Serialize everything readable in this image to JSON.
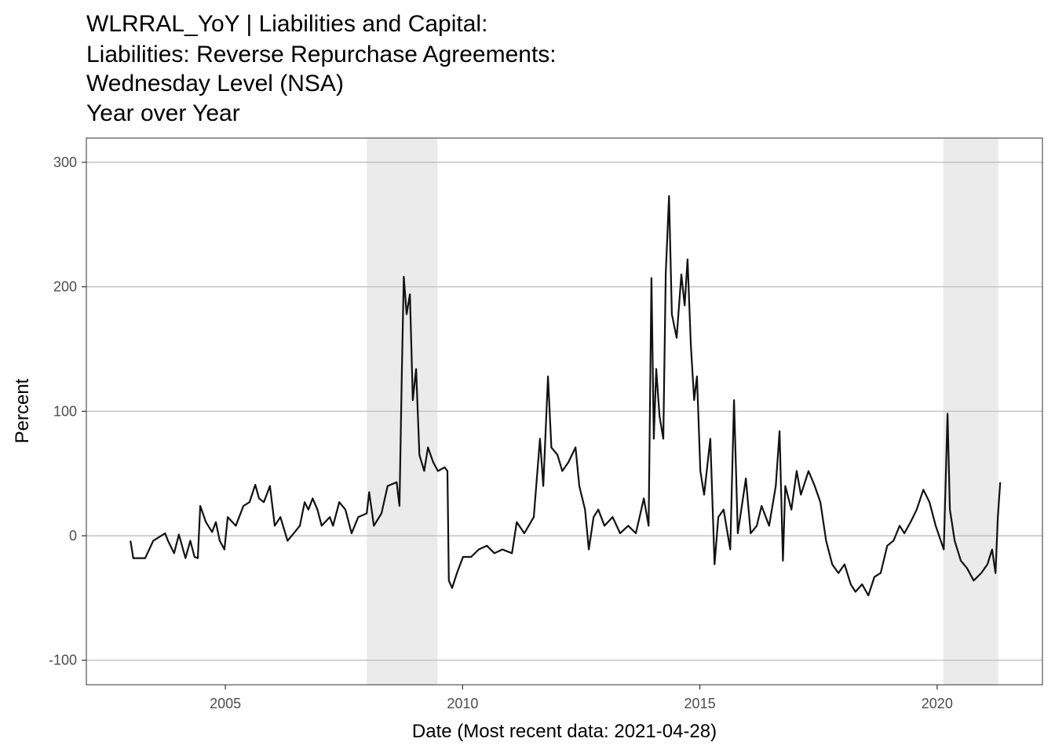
{
  "chart_data": {
    "type": "line",
    "title_lines": [
      "WLRRAL_YoY | Liabilities and Capital:",
      "Liabilities: Reverse Repurchase Agreements:",
      "Wednesday Level (NSA)",
      "Year over Year"
    ],
    "x_label": "Date (Most recent data: 2021-04-28)",
    "y_label": "Percent",
    "color": "#111111",
    "grid": true,
    "shade_color": "#ebebeb",
    "shaded_regions": [
      [
        2007.98,
        2009.47
      ],
      [
        2020.13,
        2021.29
      ]
    ],
    "xlim": [
      2002.07,
      2022.22
    ],
    "ylim": [
      -119.7,
      319.5
    ],
    "xticks": [
      2005,
      2010,
      2015,
      2020
    ],
    "yticks": [
      -100,
      0,
      100,
      200,
      300
    ],
    "x": [
      2003.0,
      2003.06,
      2003.31,
      2003.48,
      2003.73,
      2003.79,
      2003.92,
      2004.02,
      2004.16,
      2004.26,
      2004.35,
      2004.42,
      2004.47,
      2004.59,
      2004.72,
      2004.8,
      2004.88,
      2004.98,
      2005.05,
      2005.22,
      2005.38,
      2005.51,
      2005.63,
      2005.71,
      2005.81,
      2005.94,
      2006.04,
      2006.16,
      2006.31,
      2006.44,
      2006.57,
      2006.67,
      2006.75,
      2006.84,
      2006.94,
      2007.03,
      2007.2,
      2007.27,
      2007.4,
      2007.53,
      2007.66,
      2007.8,
      2007.98,
      2008.03,
      2008.13,
      2008.29,
      2008.42,
      2008.61,
      2008.67,
      2008.72,
      2008.76,
      2008.82,
      2008.89,
      2008.95,
      2009.02,
      2009.09,
      2009.19,
      2009.27,
      2009.38,
      2009.48,
      2009.62,
      2009.68,
      2009.71,
      2009.78,
      2009.88,
      2010.01,
      2010.18,
      2010.34,
      2010.51,
      2010.67,
      2010.84,
      2011.04,
      2011.14,
      2011.3,
      2011.5,
      2011.63,
      2011.7,
      2011.8,
      2011.87,
      2012.0,
      2012.1,
      2012.23,
      2012.38,
      2012.46,
      2012.58,
      2012.66,
      2012.76,
      2012.86,
      2012.99,
      2013.16,
      2013.32,
      2013.49,
      2013.65,
      2013.73,
      2013.82,
      2013.92,
      2013.98,
      2014.03,
      2014.08,
      2014.15,
      2014.23,
      2014.28,
      2014.35,
      2014.41,
      2014.51,
      2014.61,
      2014.68,
      2014.74,
      2014.81,
      2014.88,
      2014.94,
      2015.01,
      2015.09,
      2015.22,
      2015.31,
      2015.39,
      2015.5,
      2015.64,
      2015.72,
      2015.8,
      2015.97,
      2016.07,
      2016.2,
      2016.3,
      2016.46,
      2016.6,
      2016.68,
      2016.75,
      2016.8,
      2016.93,
      2017.04,
      2017.13,
      2017.29,
      2017.42,
      2017.54,
      2017.66,
      2017.79,
      2017.92,
      2018.05,
      2018.18,
      2018.28,
      2018.42,
      2018.55,
      2018.68,
      2018.81,
      2018.95,
      2019.08,
      2019.21,
      2019.31,
      2019.44,
      2019.57,
      2019.71,
      2019.84,
      2019.97,
      2020.14,
      2020.22,
      2020.27,
      2020.37,
      2020.5,
      2020.63,
      2020.77,
      2020.93,
      2021.06,
      2021.16,
      2021.23,
      2021.28,
      2021.33
    ],
    "values": [
      -4,
      -18,
      -18,
      -4,
      2,
      -4,
      -14,
      1,
      -18,
      -4,
      -17,
      -18,
      24,
      11,
      3,
      11,
      -4,
      -11,
      15,
      8,
      24,
      27,
      41,
      30,
      27,
      40,
      8,
      15,
      -4,
      2,
      8,
      27,
      21,
      30,
      21,
      8,
      15,
      8,
      27,
      21,
      2,
      15,
      18,
      35,
      8,
      18,
      40,
      43,
      24,
      134,
      208,
      178,
      194,
      109,
      134,
      65,
      52,
      71,
      59,
      52,
      55,
      52,
      -36,
      -42,
      -30,
      -17,
      -17,
      -11,
      -8,
      -14,
      -11,
      -14,
      11,
      2,
      15,
      78,
      40,
      128,
      71,
      65,
      52,
      59,
      71,
      40,
      21,
      -11,
      15,
      21,
      8,
      15,
      2,
      8,
      2,
      15,
      30,
      8,
      207,
      78,
      134,
      96,
      78,
      210,
      273,
      178,
      159,
      210,
      185,
      222,
      153,
      109,
      128,
      52,
      33,
      78,
      -23,
      15,
      21,
      -11,
      109,
      2,
      46,
      2,
      8,
      24,
      8,
      40,
      84,
      -20,
      40,
      21,
      52,
      33,
      52,
      40,
      27,
      -4,
      -23,
      -30,
      -23,
      -39,
      -45,
      -39,
      -48,
      -33,
      -30,
      -8,
      -4,
      8,
      2,
      11,
      21,
      37,
      27,
      8,
      -11,
      98,
      21,
      -4,
      -20,
      -26,
      -36,
      -30,
      -23,
      -11,
      -30,
      15,
      43
    ]
  }
}
